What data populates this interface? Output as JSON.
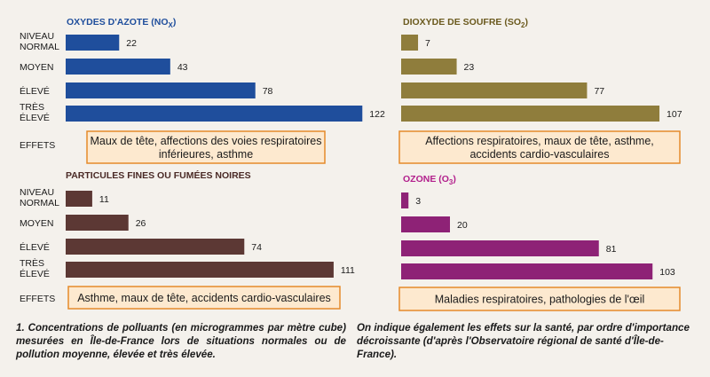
{
  "chart_data": [
    {
      "type": "bar",
      "title": "OXYDES D'AZOTE (NO",
      "title_sub": "X",
      "title_end": ")",
      "categories": [
        "NIVEAU NORMAL",
        "MOYEN",
        "ÉLEVÉ",
        "TRÈS ÉLEVÉ"
      ],
      "values": [
        22,
        43,
        78,
        122
      ],
      "effects_label": "EFFETS",
      "effects_lines": [
        "Maux de tête, affections des voies respiratoires",
        "inférieures, asthme"
      ],
      "title_color": "#1f4e9c",
      "bar_color": "#1f4e9c"
    },
    {
      "type": "bar",
      "title": "DIOXYDE DE SOUFRE (SO",
      "title_sub": "2",
      "title_end": ")",
      "categories": [
        "",
        "",
        "",
        ""
      ],
      "values": [
        7,
        23,
        77,
        107
      ],
      "effects_label": "",
      "effects_lines": [
        "Affections respiratoires, maux de tête, asthme,",
        "accidents cardio-vasculaires"
      ],
      "title_color": "#6b5a1e",
      "bar_color": "#8f7d3c"
    },
    {
      "type": "bar",
      "title": "PARTICULES FINES OU FUMÉES NOIRES",
      "title_sub": "",
      "title_end": "",
      "categories": [
        "NIVEAU NORMAL",
        "MOYEN",
        "ÉLEVÉ",
        "TRÈS ÉLEVÉ"
      ],
      "values": [
        11,
        26,
        74,
        111
      ],
      "effects_label": "EFFETS",
      "effects_lines": [
        "Asthme, maux de tête, accidents cardio-vasculaires"
      ],
      "title_color": "#4a2a26",
      "bar_color": "#5c3834"
    },
    {
      "type": "bar",
      "title": "OZONE (O",
      "title_sub": "3",
      "title_end": ")",
      "categories": [
        "",
        "",
        "",
        ""
      ],
      "values": [
        3,
        20,
        81,
        103
      ],
      "effects_label": "",
      "effects_lines": [
        "Maladies respiratoires, pathologies de l'œil"
      ],
      "title_color": "#b21f8c",
      "bar_color": "#8e2276"
    }
  ],
  "colors": {
    "effects_fill": "#fde9cf",
    "effects_border": "#e58a2a"
  },
  "caption_left": "1. Concentrations de polluants (en microgrammes par mètre cube) mesurées en Île-de-France lors de situations normales ou de pollution moyenne, élevée et très élevée.",
  "caption_right": "On indique également les effets sur la santé, par ordre d'importance décroissante (d'après l'Observatoire régional de santé d'Île-de-France)."
}
